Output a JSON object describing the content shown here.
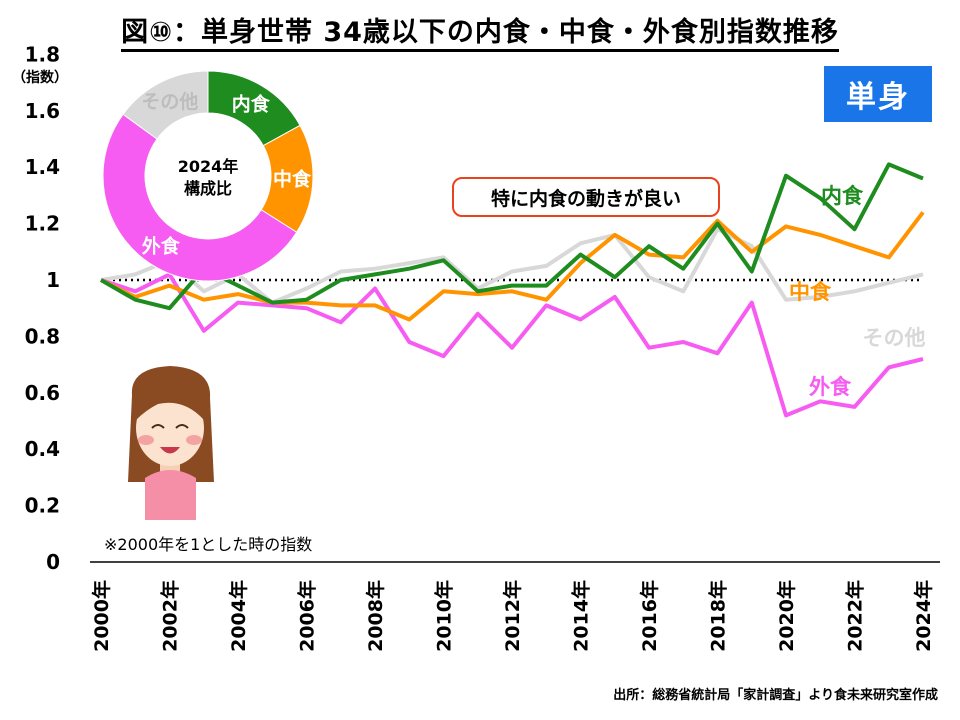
{
  "title": "図⑩：単身世帯 34歳以下の内食・中食・外食別指数推移",
  "badge": "単身",
  "callout": "特に内食の動きが良い",
  "note": "※2000年を1とした時の指数",
  "source": "出所：総務省統計局「家計調査」より食未来研究室作成",
  "colors": {
    "uchi": "#1e8c1e",
    "naka": "#ff9400",
    "soto": "#f75cf2",
    "other": "#d8d8d8",
    "baseline": "#000000"
  },
  "chart_data": {
    "type": "line",
    "ylabel": "（指数）",
    "ylim": [
      0,
      1.8
    ],
    "yticks": [
      "0",
      "0.2",
      "0.4",
      "0.6",
      "0.8",
      "1",
      "1.2",
      "1.4",
      "1.6",
      "1.8"
    ],
    "x": [
      "2000年",
      "2001年",
      "2002年",
      "2003年",
      "2004年",
      "2005年",
      "2006年",
      "2007年",
      "2008年",
      "2009年",
      "2010年",
      "2011年",
      "2012年",
      "2013年",
      "2014年",
      "2015年",
      "2016年",
      "2017年",
      "2018年",
      "2019年",
      "2020年",
      "2021年",
      "2022年",
      "2023年",
      "2024年"
    ],
    "xtick_labels": [
      "2000年",
      "2002年",
      "2004年",
      "2006年",
      "2008年",
      "2010年",
      "2012年",
      "2014年",
      "2016年",
      "2018年",
      "2020年",
      "2022年",
      "2024年"
    ],
    "baseline": 1,
    "series": [
      {
        "name": "内食",
        "values": [
          1.0,
          0.93,
          0.9,
          1.04,
          0.98,
          0.92,
          0.93,
          1.0,
          1.02,
          1.04,
          1.07,
          0.96,
          0.98,
          0.98,
          1.09,
          1.01,
          1.12,
          1.04,
          1.2,
          1.03,
          1.37,
          1.29,
          1.18,
          1.41,
          1.36
        ]
      },
      {
        "name": "中食",
        "values": [
          1.0,
          0.94,
          0.98,
          0.93,
          0.95,
          0.92,
          0.92,
          0.91,
          0.91,
          0.86,
          0.96,
          0.95,
          0.96,
          0.93,
          1.06,
          1.16,
          1.09,
          1.08,
          1.21,
          1.1,
          1.19,
          1.16,
          1.12,
          1.08,
          1.24
        ]
      },
      {
        "name": "外食",
        "values": [
          1.0,
          0.96,
          1.02,
          0.82,
          0.92,
          0.91,
          0.9,
          0.85,
          0.97,
          0.78,
          0.73,
          0.88,
          0.76,
          0.91,
          0.86,
          0.94,
          0.76,
          0.78,
          0.74,
          0.92,
          0.52,
          0.57,
          0.55,
          0.69,
          0.72
        ]
      },
      {
        "name": "その他",
        "values": [
          1.0,
          1.02,
          1.07,
          0.96,
          1.02,
          0.92,
          0.97,
          1.03,
          1.04,
          1.06,
          1.08,
          0.97,
          1.03,
          1.05,
          1.13,
          1.16,
          1.01,
          0.96,
          1.18,
          1.12,
          0.93,
          0.94,
          0.96,
          0.99,
          1.02
        ]
      }
    ],
    "series_labels": [
      "内食",
      "中食",
      "その他",
      "外食"
    ],
    "donut": {
      "center_label": [
        "2024年",
        "構成比"
      ],
      "slices": [
        {
          "name": "内食",
          "value": 17
        },
        {
          "name": "中食",
          "value": 17
        },
        {
          "name": "外食",
          "value": 51
        },
        {
          "name": "その他",
          "value": 15
        }
      ]
    }
  }
}
